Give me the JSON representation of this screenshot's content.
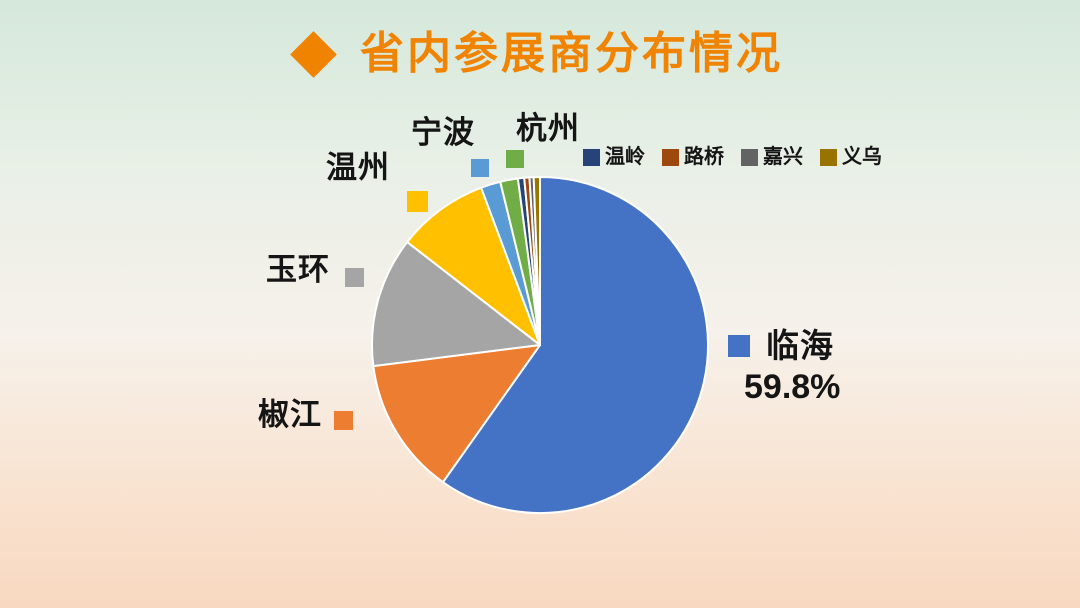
{
  "title": {
    "text": "省内参展商分布情况",
    "color": "#F08300",
    "icon": "diamond"
  },
  "chart_data": {
    "type": "pie",
    "title": "省内参展商分布情况",
    "categories": [
      "临海",
      "椒江",
      "玉环",
      "温州",
      "宁波",
      "杭州",
      "温岭",
      "路桥",
      "嘉兴",
      "义乌"
    ],
    "values": [
      59.8,
      13.2,
      12.5,
      8.8,
      1.9,
      1.7,
      0.6,
      0.5,
      0.4,
      0.6
    ],
    "unit": "%",
    "colors": [
      "#4472C4",
      "#ED7D31",
      "#A5A5A5",
      "#FFC000",
      "#5B9BD5",
      "#70AD47",
      "#264478",
      "#9E480E",
      "#636363",
      "#997300"
    ],
    "start_angle_deg": 0,
    "direction": "clockwise",
    "slice_border_color": "#FFFFFF",
    "legend_position": "top-right",
    "data_label": {
      "category": "临海",
      "text": "59.8%"
    }
  },
  "callouts": {
    "hangzhou": {
      "label": "杭州"
    },
    "ningbo": {
      "label": "宁波"
    },
    "wenzhou": {
      "label": "温州"
    },
    "yuhuan": {
      "label": "玉环"
    },
    "jiaojiang": {
      "label": "椒江"
    },
    "linhai": {
      "label": "临海",
      "value": "59.8%"
    }
  },
  "legend": {
    "items": [
      {
        "label": "温岭",
        "color": "#264478"
      },
      {
        "label": "路桥",
        "color": "#9E480E"
      },
      {
        "label": "嘉兴",
        "color": "#636363"
      },
      {
        "label": "义乌",
        "color": "#997300"
      }
    ]
  }
}
